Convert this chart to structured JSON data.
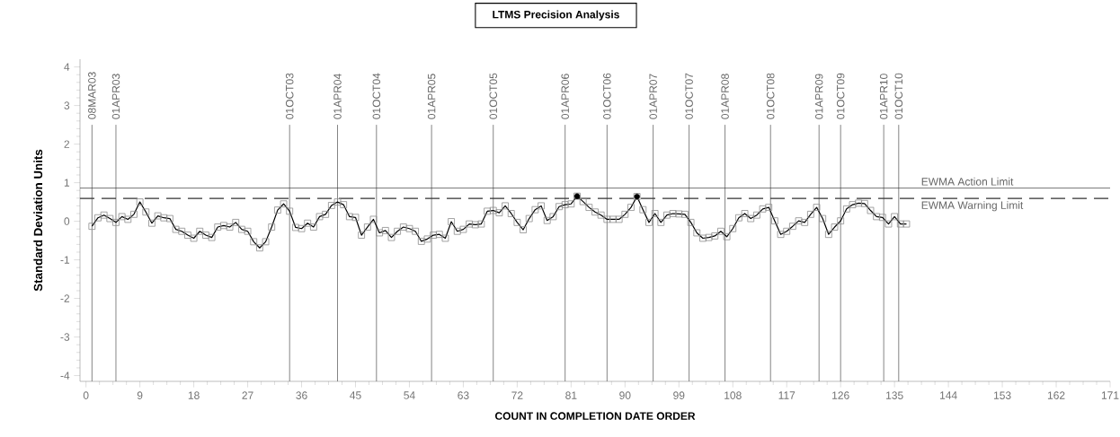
{
  "chart_data": {
    "type": "line",
    "title": "LTMS Precision Analysis",
    "xlabel": "COUNT IN COMPLETION DATE ORDER",
    "ylabel": "Standard Deviation Units",
    "xlim": [
      -1,
      171
    ],
    "ylim": [
      -4.15,
      4.2
    ],
    "xticks": [
      0,
      9,
      18,
      27,
      36,
      45,
      54,
      63,
      72,
      81,
      90,
      99,
      108,
      117,
      126,
      135,
      144,
      153,
      162,
      171
    ],
    "yticks": [
      -4,
      -3,
      -2,
      -1,
      0,
      1,
      2,
      3,
      4
    ],
    "marker": "square",
    "line_style": "solid",
    "series": [
      {
        "color": "#000000",
        "x": [
          1,
          2,
          3,
          4,
          5,
          6,
          7,
          8,
          9,
          10,
          11,
          12,
          13,
          14,
          15,
          16,
          17,
          18,
          19,
          20,
          21,
          22,
          23,
          24,
          25,
          26,
          27,
          28,
          29,
          30,
          31,
          32,
          33,
          34,
          35,
          36,
          37,
          38,
          39,
          40,
          41,
          42,
          43,
          44,
          45,
          46,
          47,
          48,
          49,
          50,
          51,
          52,
          53,
          54,
          55,
          56,
          57,
          58,
          59,
          60,
          61,
          62,
          63,
          64,
          65,
          66,
          67,
          68,
          69,
          70,
          71,
          72,
          73,
          74,
          75,
          76,
          77,
          78,
          79,
          80,
          81,
          82,
          83,
          84,
          85,
          86,
          87,
          88,
          89,
          90,
          91,
          92,
          93,
          94,
          95,
          96,
          97,
          98,
          99,
          100,
          101,
          102,
          103,
          104,
          105,
          106,
          107,
          108,
          109,
          110,
          111,
          112,
          113,
          114,
          115,
          116,
          117,
          118,
          119,
          120,
          121,
          122,
          123,
          124,
          125,
          126,
          127,
          128,
          129,
          130,
          131,
          132,
          133,
          134,
          135,
          136,
          137
        ],
        "values": [
          -0.13,
          0.09,
          0.16,
          0.07,
          -0.03,
          0.12,
          0.05,
          0.18,
          0.5,
          0.24,
          -0.05,
          0.14,
          0.09,
          0.07,
          -0.21,
          -0.26,
          -0.36,
          -0.44,
          -0.26,
          -0.36,
          -0.42,
          -0.15,
          -0.11,
          -0.15,
          -0.03,
          -0.21,
          -0.26,
          -0.53,
          -0.69,
          -0.53,
          -0.15,
          0.29,
          0.45,
          0.26,
          -0.16,
          -0.19,
          -0.05,
          -0.15,
          0.12,
          0.18,
          0.41,
          0.5,
          0.43,
          0.12,
          0.1,
          -0.36,
          -0.15,
          0.05,
          -0.3,
          -0.24,
          -0.42,
          -0.26,
          -0.15,
          -0.19,
          -0.26,
          -0.52,
          -0.46,
          -0.36,
          -0.34,
          -0.44,
          -0.01,
          -0.26,
          -0.21,
          -0.07,
          -0.09,
          -0.07,
          0.26,
          0.28,
          0.22,
          0.4,
          0.2,
          -0.03,
          -0.22,
          0.07,
          0.3,
          0.4,
          0.02,
          0.12,
          0.38,
          0.43,
          0.45,
          0.65,
          0.51,
          0.36,
          0.24,
          0.16,
          0.05,
          0.05,
          0.05,
          0.18,
          0.36,
          0.64,
          0.3,
          -0.03,
          0.2,
          -0.03,
          0.16,
          0.2,
          0.19,
          0.18,
          -0.03,
          -0.3,
          -0.44,
          -0.42,
          -0.38,
          -0.26,
          -0.4,
          -0.19,
          0.09,
          0.2,
          0.07,
          0.16,
          0.32,
          0.36,
          0.01,
          -0.34,
          -0.26,
          -0.13,
          0.01,
          -0.03,
          0.18,
          0.36,
          0.07,
          -0.34,
          -0.15,
          0.01,
          0.32,
          0.43,
          0.47,
          0.46,
          0.28,
          0.12,
          0.1,
          -0.07,
          0.12,
          -0.07,
          -0.07
        ]
      },
      {
        "type": "scatter",
        "color": "#000000",
        "x": [
          82,
          92
        ],
        "values": [
          0.65,
          0.64
        ]
      }
    ],
    "ref_lines": [
      {
        "axis": "x",
        "value": 1,
        "label": "08MAR03"
      },
      {
        "axis": "x",
        "value": 5,
        "label": "01APR03"
      },
      {
        "axis": "x",
        "value": 34,
        "label": "01OCT03"
      },
      {
        "axis": "x",
        "value": 42,
        "label": "01APR04"
      },
      {
        "axis": "x",
        "value": 48.5,
        "label": "01OCT04"
      },
      {
        "axis": "x",
        "value": 57.7,
        "label": "01APR05"
      },
      {
        "axis": "x",
        "value": 68,
        "label": "01OCT05"
      },
      {
        "axis": "x",
        "value": 80,
        "label": "01APR06"
      },
      {
        "axis": "x",
        "value": 87,
        "label": "01OCT06"
      },
      {
        "axis": "x",
        "value": 94.7,
        "label": "01APR07"
      },
      {
        "axis": "x",
        "value": 100.7,
        "label": "01OCT07"
      },
      {
        "axis": "x",
        "value": 106.7,
        "label": "01APR08"
      },
      {
        "axis": "x",
        "value": 114.3,
        "label": "01OCT08"
      },
      {
        "axis": "x",
        "value": 122.4,
        "label": "01APR09"
      },
      {
        "axis": "x",
        "value": 126,
        "label": "01OCT09"
      },
      {
        "axis": "x",
        "value": 133.2,
        "label": "01APR10"
      },
      {
        "axis": "x",
        "value": 135.7,
        "label": "01OCT10"
      },
      {
        "axis": "y",
        "value": 0.86,
        "label": "EWMA Action Limit",
        "line_style": "solid"
      },
      {
        "axis": "y",
        "value": 0.59,
        "label": "EWMA Warning Limit",
        "line_style": "dashed"
      }
    ]
  }
}
